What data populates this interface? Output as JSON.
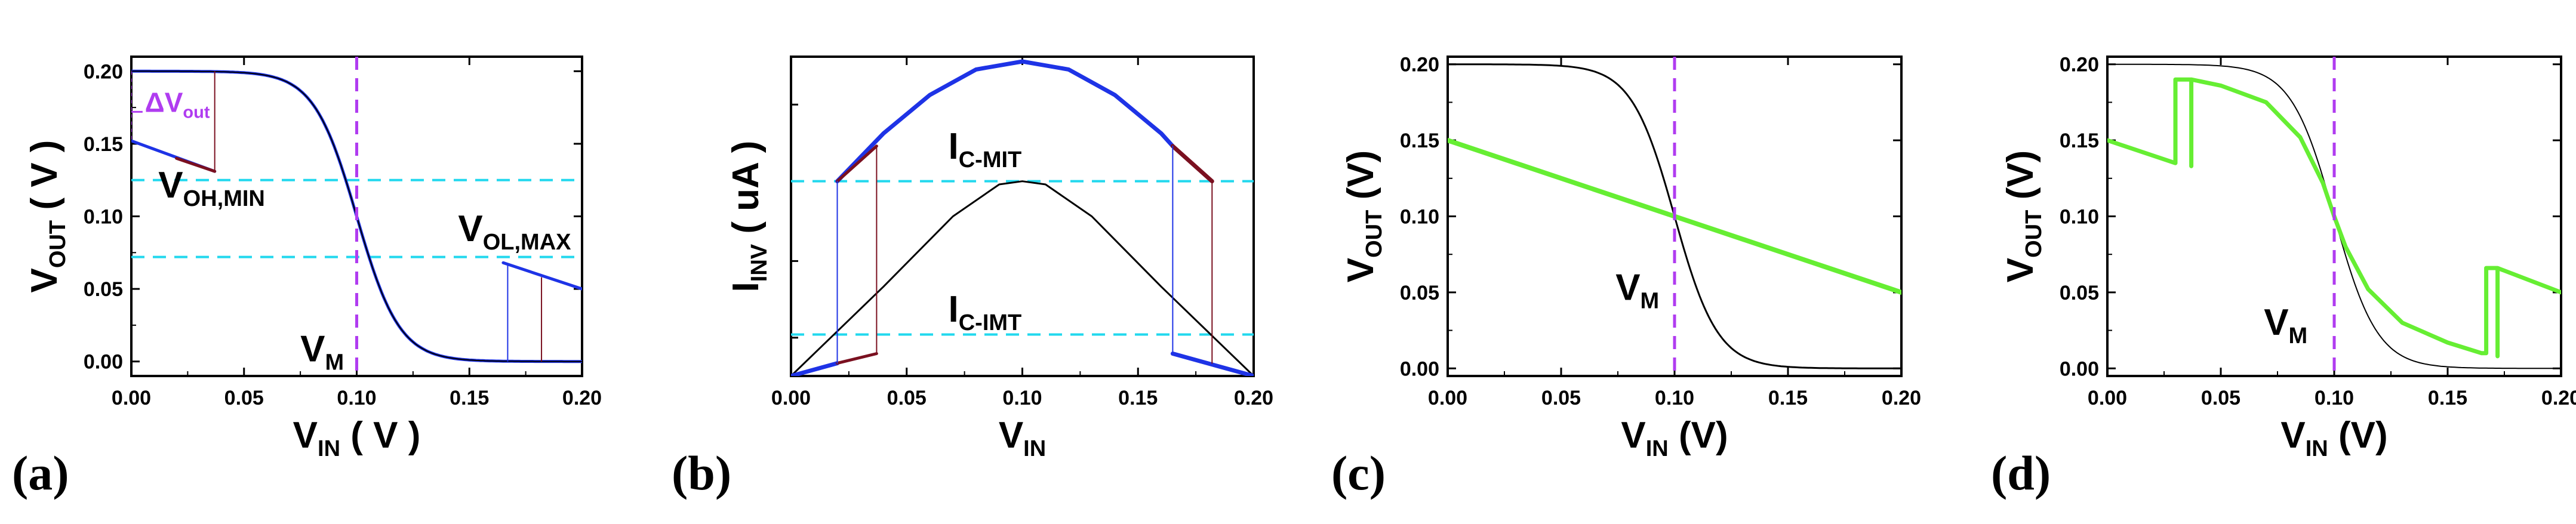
{
  "figure": {
    "panel_labels": [
      "(a)",
      "(b)",
      "(c)",
      "(d)"
    ],
    "colors": {
      "axis": "#000000",
      "curve_black": "#000000",
      "curve_blue": "#1e33e6",
      "curve_darkred": "#7a1020",
      "curve_green": "#66ee33",
      "vm_line": "#b03cf0",
      "cyan_line": "#22d8ee"
    }
  },
  "chart_data": [
    {
      "id": "a",
      "type": "line",
      "xlabel": "V",
      "xlabel_sub": "IN",
      "xlabel_unit": "( V )",
      "ylabel": "V",
      "ylabel_sub": "OUT",
      "ylabel_unit": "( V )",
      "xlim": [
        0,
        0.2
      ],
      "ylim": [
        -0.01,
        0.21
      ],
      "xticks": [
        "0.00",
        "0.05",
        "0.10",
        "0.15",
        "0.20"
      ],
      "yticks": [
        "0.00",
        "0.05",
        "0.10",
        "0.15",
        "0.20"
      ],
      "vm_x": 0.1,
      "hlines": [
        0.125,
        0.072
      ],
      "annotations": [
        {
          "label": "V",
          "sub": "OH,MIN",
          "x": 0.012,
          "y": 0.113
        },
        {
          "label": "V",
          "sub": "OL,MAX",
          "x": 0.145,
          "y": 0.083
        },
        {
          "label": "V",
          "sub": "M",
          "x": 0.075,
          "y": 0.0
        },
        {
          "label": "ΔV",
          "sub": "out",
          "x": 0.006,
          "y": 0.172
        }
      ],
      "series": [
        {
          "name": "transfer",
          "color": "blue",
          "kind": "logistic",
          "x0": 0.1,
          "k": 0.0095,
          "top": 0.2,
          "bottom": 0.0,
          "range": [
            0.0,
            0.2
          ],
          "width": 5
        },
        {
          "name": "load_high",
          "color": "blue",
          "kind": "segment",
          "points": [
            [
              0.0,
              0.152
            ],
            [
              0.037,
              0.131
            ]
          ],
          "width": 5
        },
        {
          "name": "load_high_tip",
          "color": "darkred",
          "kind": "segment",
          "points": [
            [
              0.02,
              0.14
            ],
            [
              0.037,
              0.131
            ]
          ],
          "width": 5
        },
        {
          "name": "load_low",
          "color": "blue",
          "kind": "segment",
          "points": [
            [
              0.165,
              0.068
            ],
            [
              0.2,
              0.05
            ]
          ],
          "width": 5
        }
      ]
    },
    {
      "id": "b",
      "type": "line",
      "xlabel": "V",
      "xlabel_sub": "IN",
      "xlabel_unit": "",
      "ylabel": "I",
      "ylabel_sub": "INV",
      "ylabel_unit": "( uA )",
      "xlim": [
        0,
        0.2
      ],
      "ylim": [
        0,
        1
      ],
      "xticks": [
        "0.00",
        "0.05",
        "0.10",
        "0.15",
        "0.20"
      ],
      "yticks": [],
      "hlines": [
        0.61,
        0.13
      ],
      "annotations": [
        {
          "label": "I",
          "sub": "C-MIT",
          "x": 0.068,
          "y": 0.68
        },
        {
          "label": "I",
          "sub": "C-IMT",
          "x": 0.068,
          "y": 0.17
        }
      ],
      "series": [
        {
          "name": "metal_current",
          "color": "blue",
          "kind": "points",
          "points": [
            [
              0.02,
              0.61
            ],
            [
              0.04,
              0.76
            ],
            [
              0.06,
              0.88
            ],
            [
              0.08,
              0.96
            ],
            [
              0.1,
              0.985
            ],
            [
              0.12,
              0.96
            ],
            [
              0.14,
              0.88
            ],
            [
              0.16,
              0.76
            ],
            [
              0.165,
              0.72
            ]
          ],
          "width": 7
        },
        {
          "name": "insulator_current",
          "color": "black",
          "kind": "points",
          "points": [
            [
              0.0,
              0.0
            ],
            [
              0.04,
              0.28
            ],
            [
              0.07,
              0.5
            ],
            [
              0.09,
              0.6
            ],
            [
              0.1,
              0.61
            ],
            [
              0.11,
              0.6
            ],
            [
              0.13,
              0.5
            ],
            [
              0.16,
              0.28
            ],
            [
              0.2,
              0.0
            ]
          ],
          "width": 3
        },
        {
          "name": "low_left",
          "color": "blue",
          "kind": "segment",
          "points": [
            [
              0.0,
              0.0
            ],
            [
              0.02,
              0.04
            ]
          ],
          "width": 7
        },
        {
          "name": "low_left_red",
          "color": "darkred",
          "kind": "segment",
          "points": [
            [
              0.02,
              0.04
            ],
            [
              0.037,
              0.07
            ]
          ],
          "width": 5
        },
        {
          "name": "low_right",
          "color": "blue",
          "kind": "segment",
          "points": [
            [
              0.165,
              0.07
            ],
            [
              0.2,
              0.0
            ]
          ],
          "width": 7
        },
        {
          "name": "high_right_red",
          "color": "darkred",
          "kind": "segment",
          "points": [
            [
              0.165,
              0.72
            ],
            [
              0.182,
              0.61
            ]
          ],
          "width": 7
        },
        {
          "name": "high_left_red",
          "color": "darkred",
          "kind": "segment",
          "points": [
            [
              0.02,
              0.61
            ],
            [
              0.037,
              0.72
            ]
          ],
          "width": 5
        },
        {
          "name": "jump_left_blue",
          "color": "blue",
          "kind": "segment",
          "points": [
            [
              0.02,
              0.04
            ],
            [
              0.02,
              0.61
            ]
          ],
          "width": 2
        },
        {
          "name": "jump_left_red",
          "color": "darkred",
          "kind": "segment",
          "points": [
            [
              0.037,
              0.07
            ],
            [
              0.037,
              0.72
            ]
          ],
          "width": 2
        },
        {
          "name": "jump_right_blue",
          "color": "blue",
          "kind": "segment",
          "points": [
            [
              0.165,
              0.07
            ],
            [
              0.165,
              0.72
            ]
          ],
          "width": 2
        },
        {
          "name": "jump_right_red",
          "color": "darkred",
          "kind": "segment",
          "points": [
            [
              0.182,
              0.04
            ],
            [
              0.182,
              0.61
            ]
          ],
          "width": 2
        }
      ]
    },
    {
      "id": "c",
      "type": "line",
      "xlabel": "V",
      "xlabel_sub": "IN",
      "xlabel_unit": "(V)",
      "ylabel": "V",
      "ylabel_sub": "OUT",
      "ylabel_unit": "(V)",
      "xlim": [
        0,
        0.2
      ],
      "ylim": [
        -0.005,
        0.205
      ],
      "xticks": [
        "0.00",
        "0.05",
        "0.10",
        "0.15",
        "0.20"
      ],
      "yticks": [
        "0.00",
        "0.05",
        "0.10",
        "0.15",
        "0.20"
      ],
      "vm_x": 0.1,
      "annotations": [
        {
          "label": "V",
          "sub": "M",
          "x": 0.074,
          "y": 0.045
        }
      ],
      "series": [
        {
          "name": "transfer",
          "color": "black",
          "kind": "logistic",
          "x0": 0.1,
          "k": 0.0095,
          "top": 0.2,
          "bottom": 0.0,
          "range": [
            0.0,
            0.2
          ],
          "width": 3
        },
        {
          "name": "load_line",
          "color": "green",
          "kind": "segment",
          "points": [
            [
              0.0,
              0.15
            ],
            [
              0.2,
              0.05
            ]
          ],
          "width": 8
        }
      ]
    },
    {
      "id": "d",
      "type": "line",
      "xlabel": "V",
      "xlabel_sub": "IN",
      "xlabel_unit": "(V)",
      "ylabel": "V",
      "ylabel_sub": "OUT",
      "ylabel_unit": "(V)",
      "xlim": [
        0,
        0.2
      ],
      "ylim": [
        -0.005,
        0.205
      ],
      "xticks": [
        "0.00",
        "0.05",
        "0.10",
        "0.15",
        "0.20"
      ],
      "yticks": [
        "0.00",
        "0.05",
        "0.10",
        "0.15",
        "0.20"
      ],
      "vm_x": 0.1,
      "annotations": [
        {
          "label": "V",
          "sub": "M",
          "x": 0.069,
          "y": 0.022
        }
      ],
      "series": [
        {
          "name": "ideal_transfer",
          "color": "black",
          "kind": "logistic",
          "x0": 0.1,
          "k": 0.0095,
          "top": 0.2,
          "bottom": 0.0,
          "range": [
            0.0,
            0.2
          ],
          "width": 2
        },
        {
          "name": "hysteretic_output",
          "color": "green",
          "kind": "points",
          "points": [
            [
              0.0,
              0.15
            ],
            [
              0.03,
              0.135
            ],
            [
              0.03,
              0.19
            ],
            [
              0.037,
              0.19
            ],
            [
              0.037,
              0.133
            ],
            [
              0.037,
              0.19
            ],
            [
              0.05,
              0.186
            ],
            [
              0.07,
              0.175
            ],
            [
              0.085,
              0.152
            ],
            [
              0.095,
              0.122
            ],
            [
              0.1,
              0.1
            ],
            [
              0.105,
              0.08
            ],
            [
              0.115,
              0.052
            ],
            [
              0.13,
              0.03
            ],
            [
              0.15,
              0.017
            ],
            [
              0.165,
              0.01
            ],
            [
              0.167,
              0.01
            ],
            [
              0.167,
              0.066
            ],
            [
              0.172,
              0.066
            ],
            [
              0.172,
              0.008
            ],
            [
              0.172,
              0.066
            ],
            [
              0.2,
              0.05
            ]
          ],
          "width": 7
        }
      ]
    }
  ]
}
